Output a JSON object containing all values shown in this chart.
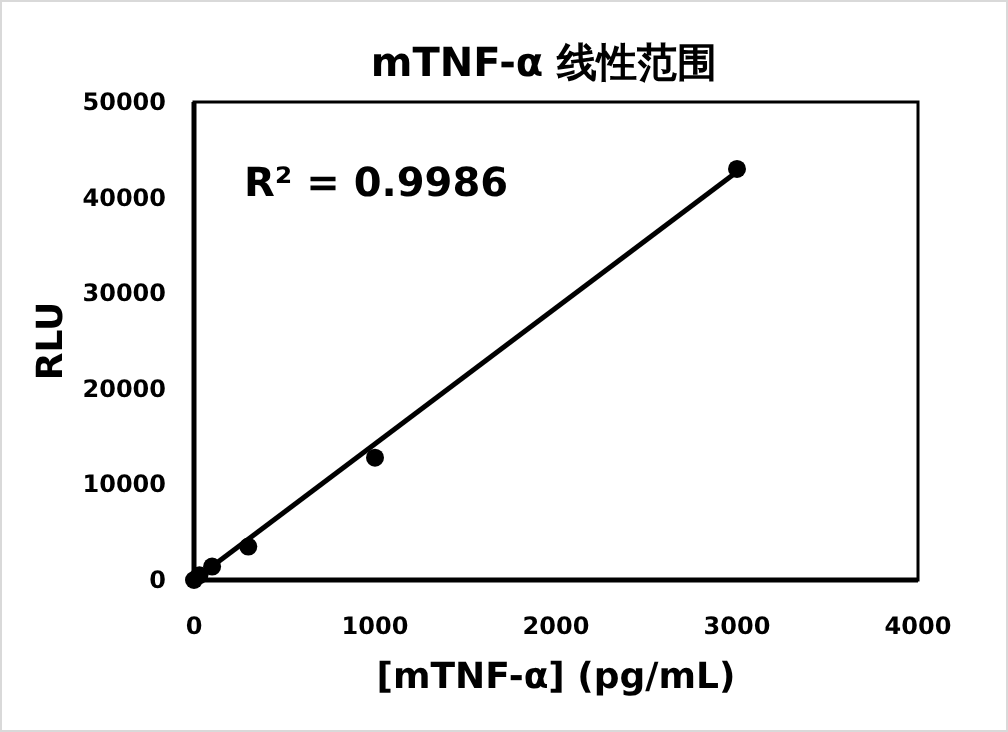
{
  "chart_data": {
    "type": "scatter",
    "title": "mTNF-α 线性范围",
    "xlabel": "[mTNF-α] (pg/mL)",
    "ylabel": "RLU",
    "annotations": [
      "R² = 0.9986"
    ],
    "xlim": [
      0,
      4000
    ],
    "xticks": [
      0,
      1000,
      2000,
      3000,
      4000
    ],
    "ylim": [
      0,
      50000
    ],
    "yticks": [
      0,
      10000,
      20000,
      30000,
      40000,
      50000
    ],
    "grid": false,
    "series": [
      {
        "color": "#000000",
        "marker": "circle",
        "x": [
          0,
          30,
          100,
          300,
          1000,
          3000
        ],
        "values": [
          0,
          500,
          1400,
          3500,
          12800,
          43000
        ]
      },
      {
        "type": "line",
        "color": "#000000",
        "marker": "none",
        "line_style": "solid",
        "x": [
          0,
          3000
        ],
        "values": [
          0,
          42700
        ]
      }
    ]
  }
}
